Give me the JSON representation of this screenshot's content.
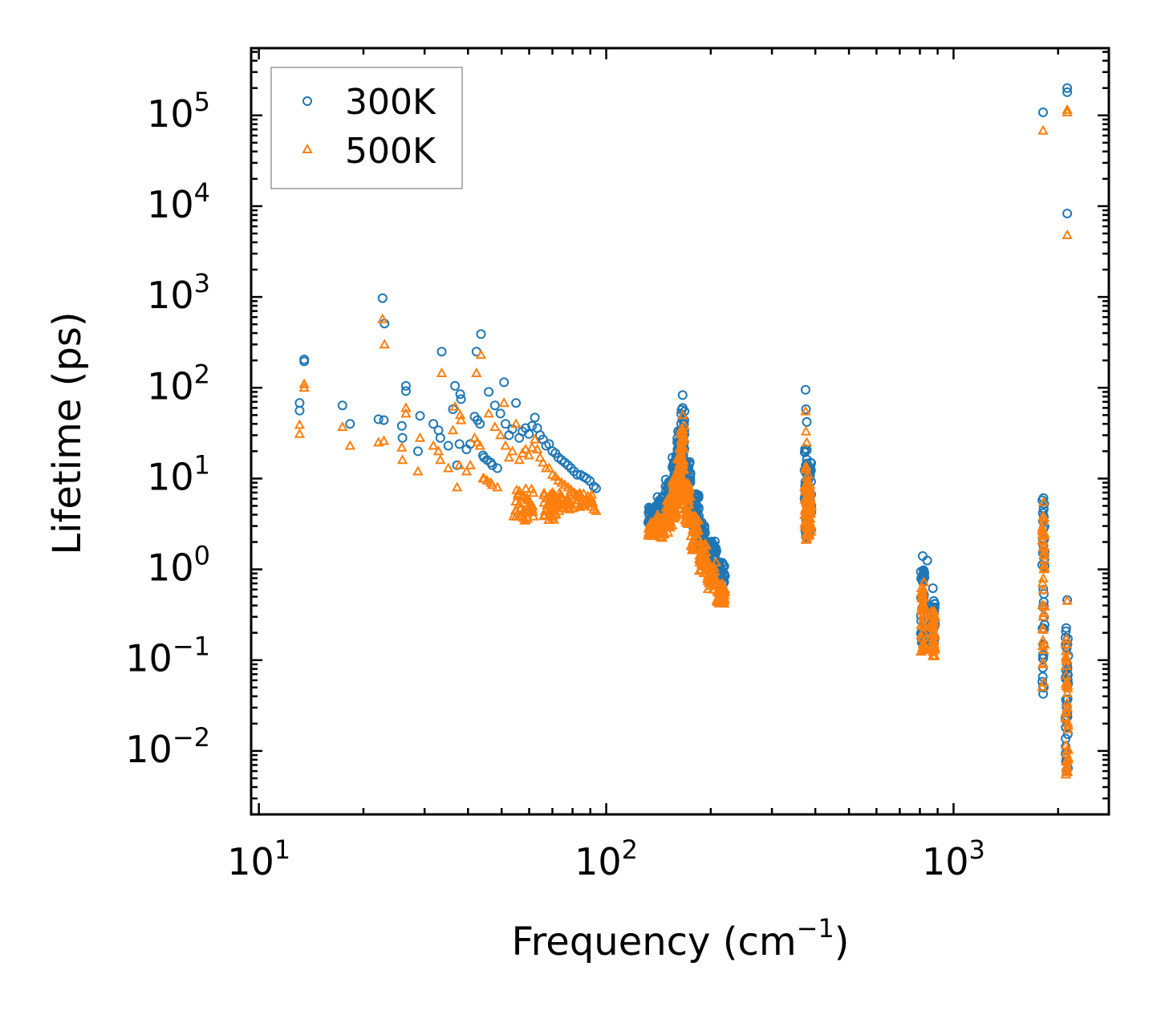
{
  "chart_data": {
    "type": "scatter",
    "title": "",
    "xlabel": "Frequency (cm",
    "xlabel_sup": "−1",
    "xlabel_suffix": ")",
    "ylabel": "Lifetime (ps)",
    "xscale": "log",
    "yscale": "log",
    "xlim": [
      9.5,
      2800
    ],
    "ylim": [
      0.002,
      550000
    ],
    "x_ticks": [
      {
        "value": 10,
        "base": "10",
        "exp": "1"
      },
      {
        "value": 100,
        "base": "10",
        "exp": "2"
      },
      {
        "value": 1000,
        "base": "10",
        "exp": "3"
      }
    ],
    "y_ticks": [
      {
        "value": 0.01,
        "base": "10",
        "exp": "−2"
      },
      {
        "value": 0.1,
        "base": "10",
        "exp": "−1"
      },
      {
        "value": 1,
        "base": "10",
        "exp": "0"
      },
      {
        "value": 10,
        "base": "10",
        "exp": "1"
      },
      {
        "value": 100,
        "base": "10",
        "exp": "2"
      },
      {
        "value": 1000,
        "base": "10",
        "exp": "3"
      },
      {
        "value": 10000,
        "base": "10",
        "exp": "4"
      },
      {
        "value": 100000,
        "base": "10",
        "exp": "5"
      }
    ],
    "legend_position": "top-left",
    "series": [
      {
        "name": "300K",
        "marker": "circle",
        "color": "#1f77b4",
        "points": [
          [
            13.1,
            68
          ],
          [
            13.1,
            56
          ],
          [
            13.5,
            205
          ],
          [
            13.5,
            195
          ],
          [
            17.4,
            64
          ],
          [
            18.3,
            40
          ],
          [
            22.1,
            45
          ],
          [
            22.9,
            44
          ],
          [
            22.7,
            970
          ],
          [
            23.0,
            510
          ],
          [
            25.8,
            38
          ],
          [
            25.9,
            28
          ],
          [
            26.5,
            105
          ],
          [
            26.5,
            92
          ],
          [
            28.7,
            20
          ],
          [
            29.1,
            49
          ],
          [
            31.8,
            40
          ],
          [
            32.9,
            34
          ],
          [
            33.3,
            28
          ],
          [
            33.6,
            250
          ],
          [
            35.1,
            23
          ],
          [
            36.2,
            58
          ],
          [
            36.7,
            105
          ],
          [
            37.2,
            14
          ],
          [
            37.8,
            24
          ],
          [
            38.0,
            85
          ],
          [
            38.2,
            75
          ],
          [
            39.6,
            21
          ],
          [
            40.6,
            24
          ],
          [
            41.8,
            48
          ],
          [
            42.3,
            250
          ],
          [
            42.6,
            44
          ],
          [
            43.3,
            40
          ],
          [
            43.6,
            390
          ],
          [
            44.2,
            18
          ],
          [
            44.5,
            17
          ],
          [
            45.4,
            16
          ],
          [
            45.9,
            90
          ],
          [
            46.5,
            15
          ],
          [
            47.0,
            14
          ],
          [
            47.8,
            64
          ],
          [
            48.6,
            13
          ],
          [
            49.6,
            52
          ],
          [
            50.8,
            115
          ],
          [
            51.3,
            40
          ],
          [
            52.5,
            30
          ],
          [
            53.7,
            35
          ],
          [
            55.0,
            68
          ],
          [
            56.2,
            28
          ],
          [
            57.4,
            33
          ],
          [
            58.6,
            36
          ],
          [
            59.9,
            31
          ],
          [
            61.2,
            38
          ],
          [
            62.3,
            47
          ],
          [
            63.3,
            36
          ],
          [
            64.5,
            30
          ],
          [
            65.8,
            27
          ],
          [
            67.1,
            23
          ],
          [
            68.5,
            24
          ],
          [
            70.0,
            20
          ],
          [
            71.4,
            19
          ],
          [
            72.8,
            17
          ],
          [
            74.4,
            16
          ],
          [
            76.0,
            15
          ],
          [
            77.6,
            14
          ],
          [
            79.2,
            13
          ],
          [
            80.8,
            12
          ],
          [
            82.5,
            11
          ],
          [
            84.3,
            11
          ],
          [
            86.0,
            10.5
          ],
          [
            87.8,
            10
          ],
          [
            89.7,
            9.4
          ],
          [
            92.0,
            8.2
          ],
          [
            93.5,
            7.8
          ]
        ],
        "clusters": [
          [
            132,
            140,
            3.2,
            5.2
          ],
          [
            140,
            148,
            3.6,
            6.5
          ],
          [
            148,
            155,
            4.2,
            10
          ],
          [
            155,
            160,
            6,
            18
          ],
          [
            160,
            164,
            9,
            35
          ],
          [
            164,
            168,
            12,
            60
          ],
          [
            168,
            175,
            5,
            16
          ],
          [
            175,
            185,
            2.8,
            7
          ],
          [
            185,
            195,
            1.6,
            3.5
          ],
          [
            195,
            208,
            1.1,
            2.1
          ],
          [
            208,
            220,
            0.7,
            1.2
          ],
          [
            372,
            382,
            2.2,
            22
          ],
          [
            380,
            390,
            2.5,
            15
          ],
          [
            805,
            825,
            0.15,
            1.0
          ],
          [
            860,
            885,
            0.12,
            0.45
          ],
          [
            1800,
            1830,
            0.04,
            6
          ],
          [
            2100,
            2140,
            0.006,
            0.24
          ]
        ],
        "outliers": [
          [
            166,
            83
          ],
          [
            166,
            60
          ],
          [
            168,
            55
          ],
          [
            375,
            95
          ],
          [
            376,
            58
          ],
          [
            378,
            42
          ],
          [
            815,
            1.4
          ],
          [
            840,
            1.25
          ],
          [
            872,
            0.62
          ],
          [
            1815,
            6.1
          ],
          [
            1815,
            2.8
          ],
          [
            2125,
            0.46
          ],
          [
            1810,
            108000
          ],
          [
            2125,
            200000
          ],
          [
            2125,
            180000
          ],
          [
            2125,
            8300
          ]
        ]
      },
      {
        "name": "500K",
        "marker": "triangle",
        "color": "#ff7f0e",
        "points": [
          [
            13.1,
            39
          ],
          [
            13.1,
            31
          ],
          [
            13.5,
            110
          ],
          [
            13.5,
            100
          ],
          [
            17.4,
            37
          ],
          [
            18.3,
            23
          ],
          [
            22.1,
            25
          ],
          [
            22.9,
            26
          ],
          [
            22.7,
            570
          ],
          [
            23.0,
            300
          ],
          [
            25.8,
            22
          ],
          [
            25.9,
            16
          ],
          [
            26.5,
            60
          ],
          [
            26.5,
            52
          ],
          [
            28.7,
            12
          ],
          [
            29.1,
            28
          ],
          [
            31.8,
            23
          ],
          [
            32.9,
            20
          ],
          [
            33.3,
            16
          ],
          [
            33.6,
            145
          ],
          [
            35.1,
            13
          ],
          [
            36.2,
            34
          ],
          [
            36.7,
            62
          ],
          [
            37.2,
            8
          ],
          [
            37.8,
            14
          ],
          [
            38.0,
            50
          ],
          [
            38.2,
            44
          ],
          [
            39.6,
            12
          ],
          [
            40.6,
            14
          ],
          [
            41.8,
            28
          ],
          [
            42.3,
            145
          ],
          [
            42.6,
            25
          ],
          [
            43.3,
            23
          ],
          [
            43.6,
            230
          ],
          [
            44.2,
            10
          ],
          [
            44.5,
            10
          ],
          [
            45.4,
            9.5
          ],
          [
            45.9,
            52
          ],
          [
            46.5,
            9
          ],
          [
            47.0,
            8.5
          ],
          [
            47.8,
            37
          ],
          [
            48.6,
            8
          ],
          [
            49.6,
            30
          ],
          [
            50.8,
            68
          ],
          [
            51.3,
            23
          ],
          [
            52.5,
            17
          ],
          [
            53.7,
            20
          ],
          [
            55.0,
            40
          ],
          [
            56.2,
            16
          ],
          [
            57.4,
            19
          ],
          [
            58.6,
            21
          ],
          [
            59.9,
            18
          ],
          [
            61.2,
            22
          ],
          [
            62.3,
            27
          ],
          [
            63.3,
            21
          ],
          [
            64.5,
            17
          ],
          [
            65.8,
            15
          ],
          [
            67.1,
            13
          ],
          [
            68.5,
            13
          ],
          [
            70.0,
            11
          ],
          [
            71.4,
            10.5
          ],
          [
            72.8,
            9.5
          ],
          [
            74.4,
            9
          ],
          [
            76.0,
            8.5
          ],
          [
            77.6,
            8
          ],
          [
            79.2,
            7.5
          ],
          [
            80.8,
            7
          ],
          [
            82.5,
            6.5
          ],
          [
            84.3,
            6.2
          ],
          [
            86.0,
            5.9
          ],
          [
            87.8,
            5.6
          ],
          [
            89.7,
            5.3
          ],
          [
            92.0,
            4.6
          ],
          [
            93.5,
            4.4
          ]
        ],
        "clusters": [
          [
            54,
            62,
            3.4,
            8
          ],
          [
            66,
            72,
            3.5,
            7
          ],
          [
            72,
            92,
            4.4,
            7
          ],
          [
            132,
            140,
            2.3,
            3.3
          ],
          [
            140,
            148,
            2.2,
            4
          ],
          [
            148,
            155,
            2.5,
            6
          ],
          [
            155,
            160,
            3.5,
            10
          ],
          [
            160,
            164,
            5,
            22
          ],
          [
            164,
            168,
            7,
            35
          ],
          [
            168,
            175,
            3,
            9
          ],
          [
            175,
            185,
            1.6,
            4
          ],
          [
            185,
            195,
            0.9,
            2
          ],
          [
            195,
            208,
            0.6,
            1.2
          ],
          [
            208,
            220,
            0.4,
            0.7
          ],
          [
            372,
            382,
            2,
            14
          ],
          [
            380,
            390,
            2.2,
            9
          ],
          [
            805,
            825,
            0.12,
            0.75
          ],
          [
            860,
            885,
            0.11,
            0.35
          ],
          [
            1800,
            1830,
            0.045,
            4.5
          ],
          [
            2100,
            2140,
            0.0055,
            0.2
          ]
        ],
        "outliers": [
          [
            166,
            50
          ],
          [
            168,
            38
          ],
          [
            375,
            55
          ],
          [
            376,
            33
          ],
          [
            378,
            25
          ],
          [
            1815,
            5.5
          ],
          [
            1815,
            1.8
          ],
          [
            2125,
            0.45
          ],
          [
            1810,
            68000
          ],
          [
            2125,
            115000
          ],
          [
            2125,
            108000
          ],
          [
            2125,
            4800
          ]
        ]
      }
    ]
  }
}
